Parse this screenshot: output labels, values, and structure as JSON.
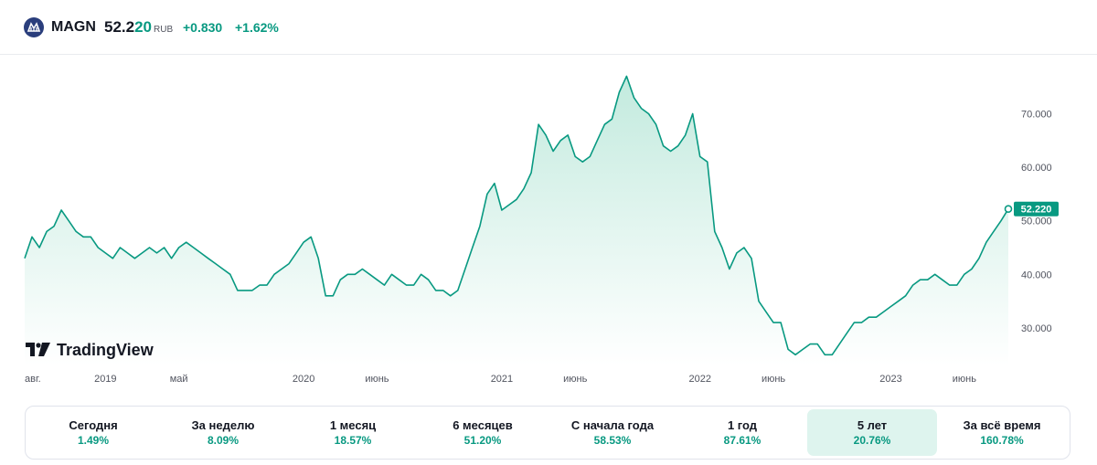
{
  "header": {
    "ticker": "MAGN",
    "price_main": "52.2",
    "price_tail": "20",
    "currency": "RUB",
    "change": "+0.830",
    "change_pct": "+1.62%"
  },
  "brand": {
    "name": "TradingView"
  },
  "colors": {
    "line": "#089981",
    "fill_top": "#cdeee4",
    "positive": "#089981",
    "logo_bg": "#2a3e7c"
  },
  "icons": {
    "company_logo": "magnitogorsk-logo-icon",
    "brand_logo": "tradingview-logo-icon"
  },
  "chart_data": {
    "type": "area",
    "ylim": [
      23,
      81
    ],
    "last_value_label": "52.220",
    "y_ticks": [
      {
        "value": 70,
        "label": "70.000"
      },
      {
        "value": 60,
        "label": "60.000"
      },
      {
        "value": 50,
        "label": "50.000"
      },
      {
        "value": 40,
        "label": "40.000"
      },
      {
        "value": 30,
        "label": "30.000"
      }
    ],
    "x_ticks": [
      {
        "i": 0,
        "label": "авг."
      },
      {
        "i": 11,
        "label": "2019"
      },
      {
        "i": 21,
        "label": "май"
      },
      {
        "i": 38,
        "label": "2020"
      },
      {
        "i": 48,
        "label": "июнь"
      },
      {
        "i": 65,
        "label": "2021"
      },
      {
        "i": 75,
        "label": "июнь"
      },
      {
        "i": 92,
        "label": "2022"
      },
      {
        "i": 102,
        "label": "июнь"
      },
      {
        "i": 118,
        "label": "2023"
      },
      {
        "i": 128,
        "label": "июнь"
      }
    ],
    "values": [
      43,
      47,
      45,
      48,
      49,
      52,
      50,
      48,
      47,
      47,
      45,
      44,
      43,
      45,
      44,
      43,
      44,
      45,
      44,
      45,
      43,
      45,
      46,
      45,
      44,
      43,
      42,
      41,
      40,
      37,
      37,
      37,
      38,
      38,
      40,
      41,
      42,
      44,
      46,
      47,
      43,
      36,
      36,
      39,
      40,
      40,
      41,
      40,
      39,
      38,
      40,
      39,
      38,
      38,
      40,
      39,
      37,
      37,
      36,
      37,
      41,
      45,
      49,
      55,
      57,
      52,
      53,
      54,
      56,
      59,
      68,
      66,
      63,
      65,
      66,
      62,
      61,
      62,
      65,
      68,
      69,
      74,
      77,
      73,
      71,
      70,
      68,
      64,
      63,
      64,
      66,
      70,
      62,
      61,
      48,
      45,
      41,
      44,
      45,
      43,
      35,
      33,
      31,
      31,
      26,
      25,
      26,
      27,
      27,
      25,
      25,
      27,
      29,
      31,
      31,
      32,
      32,
      33,
      34,
      35,
      36,
      38,
      39,
      39,
      40,
      39,
      38,
      38,
      40,
      41,
      43,
      46,
      48,
      50,
      52.22
    ]
  },
  "periods": [
    {
      "label": "Сегодня",
      "value": "1.49%",
      "active": false
    },
    {
      "label": "За неделю",
      "value": "8.09%",
      "active": false
    },
    {
      "label": "1 месяц",
      "value": "18.57%",
      "active": false
    },
    {
      "label": "6 месяцев",
      "value": "51.20%",
      "active": false
    },
    {
      "label": "С начала года",
      "value": "58.53%",
      "active": false
    },
    {
      "label": "1 год",
      "value": "87.61%",
      "active": false
    },
    {
      "label": "5 лет",
      "value": "20.76%",
      "active": true
    },
    {
      "label": "За всё время",
      "value": "160.78%",
      "active": false
    }
  ]
}
